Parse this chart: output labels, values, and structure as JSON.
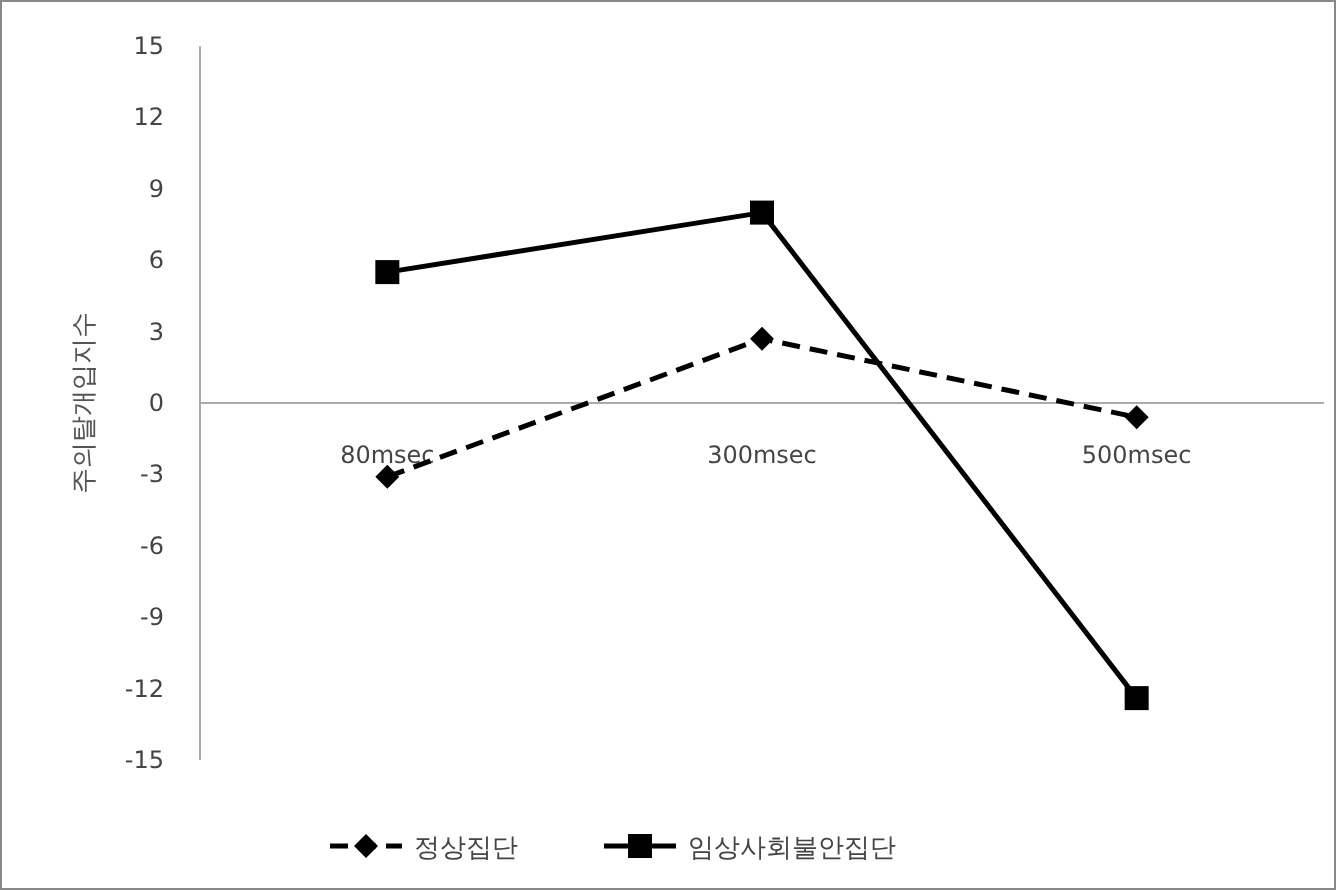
{
  "chart_data": {
    "type": "line",
    "ylabel": "주의탈개입지수",
    "categories": [
      "80msec",
      "300msec",
      "500msec"
    ],
    "series": [
      {
        "name": "정상집단",
        "color": "#000000",
        "values": [
          -3.1,
          2.7,
          -0.6
        ],
        "marker": "diamond",
        "line_style": "dashed"
      },
      {
        "name": "임상사회불안집단",
        "color": "#000000",
        "values": [
          5.5,
          8.0,
          -12.4
        ],
        "marker": "square",
        "line_style": "solid"
      }
    ],
    "ylim": [
      -15,
      15
    ],
    "yticks": [
      -15,
      -12,
      -9,
      -6,
      -3,
      0,
      3,
      6,
      9,
      12,
      15
    ],
    "grid": false,
    "legend": "bottom"
  }
}
